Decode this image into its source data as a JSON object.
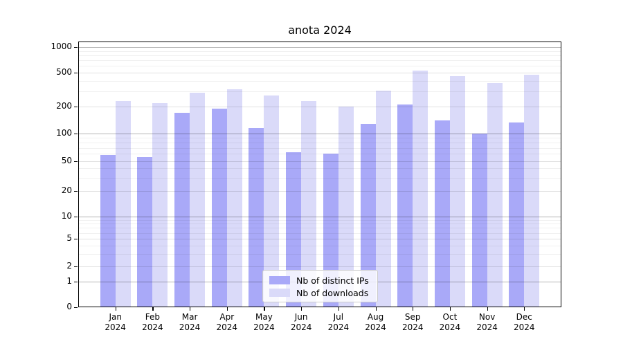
{
  "title": "anota 2024",
  "chart_data": {
    "type": "bar",
    "title": "anota 2024",
    "categories": [
      "Jan 2024",
      "Feb 2024",
      "Mar 2024",
      "Apr 2024",
      "May 2024",
      "Jun 2024",
      "Jul 2024",
      "Aug 2024",
      "Sep 2024",
      "Oct 2024",
      "Nov 2024",
      "Dec 2024"
    ],
    "series": [
      {
        "name": "Nb of distinct IPs",
        "color": "#a9a9f8",
        "values": [
          58,
          55,
          170,
          190,
          116,
          63,
          61,
          129,
          210,
          140,
          100,
          133
        ]
      },
      {
        "name": "Nb of downloads",
        "color": "#dadaf9",
        "values": [
          230,
          220,
          290,
          315,
          270,
          230,
          200,
          305,
          525,
          455,
          375,
          470
        ]
      }
    ],
    "xlabel": "",
    "ylabel": "",
    "y_scale": "symlog",
    "y_ticks": [
      0,
      1,
      2,
      5,
      10,
      20,
      50,
      100,
      200,
      500,
      1000
    ],
    "ylim": [
      0,
      1100
    ],
    "grid": true,
    "grid_minor": true,
    "legend_position": "lower center",
    "bar_orientation": "vertical"
  },
  "legend": {
    "items": [
      {
        "label": "Nb of distinct IPs",
        "color": "#a9a9f8"
      },
      {
        "label": "Nb of downloads",
        "color": "#dadaf9"
      }
    ]
  },
  "colors": {
    "ips_bar": "#a9a9f8",
    "downloads_bar": "#dadaf9",
    "axis": "#000000",
    "grid_major": "rgba(0,0,0,0.30)",
    "grid_labeled": "rgba(0,0,0,0.12)",
    "grid_minor": "rgba(0,0,0,0.06)",
    "legend_border": "#cccccc",
    "background": "#ffffff"
  }
}
